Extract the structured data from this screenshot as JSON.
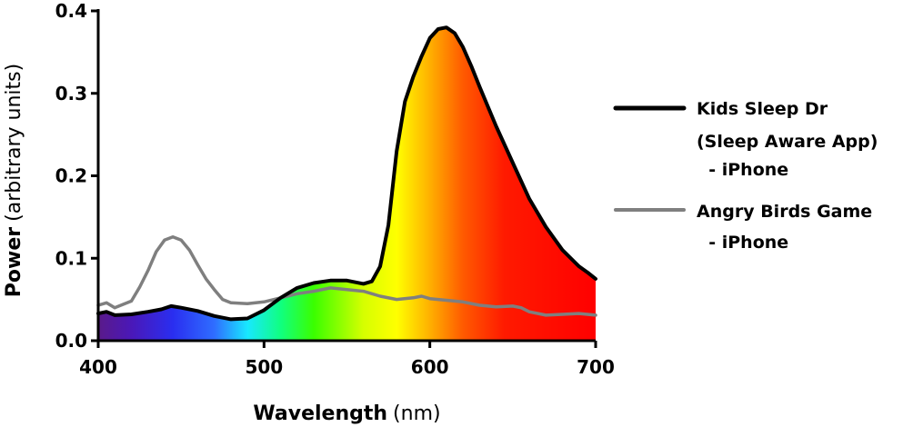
{
  "chart_data": {
    "type": "line",
    "xlabel": "Wavelength",
    "xlabel_unit": "(nm)",
    "ylabel": "Power",
    "ylabel_unit": "(arbitrary units)",
    "xlim": [
      400,
      700
    ],
    "ylim": [
      0,
      0.4
    ],
    "x_ticks": [
      "400",
      "500",
      "600",
      "700"
    ],
    "y_ticks": [
      "0.0",
      "0.1",
      "0.2",
      "0.3",
      "0.4"
    ],
    "grid": false,
    "legend_position": "right",
    "fill_under_series": "Kids Sleep Dr (Sleep Aware App) - iPhone",
    "fill_style": "visible-spectrum gradient",
    "series": [
      {
        "name_lines": [
          "Kids Sleep Dr",
          "(Sleep Aware App)",
          "  - iPhone"
        ],
        "name": "Kids Sleep Dr (Sleep Aware App) - iPhone",
        "color": "#000000",
        "points": [
          [
            400,
            0.033
          ],
          [
            405,
            0.035
          ],
          [
            410,
            0.031
          ],
          [
            420,
            0.032
          ],
          [
            430,
            0.035
          ],
          [
            438,
            0.038
          ],
          [
            444,
            0.042
          ],
          [
            450,
            0.04
          ],
          [
            460,
            0.036
          ],
          [
            470,
            0.03
          ],
          [
            480,
            0.026
          ],
          [
            490,
            0.027
          ],
          [
            500,
            0.037
          ],
          [
            510,
            0.052
          ],
          [
            520,
            0.064
          ],
          [
            530,
            0.07
          ],
          [
            540,
            0.073
          ],
          [
            550,
            0.073
          ],
          [
            560,
            0.069
          ],
          [
            565,
            0.072
          ],
          [
            570,
            0.09
          ],
          [
            575,
            0.14
          ],
          [
            580,
            0.23
          ],
          [
            585,
            0.29
          ],
          [
            590,
            0.32
          ],
          [
            595,
            0.345
          ],
          [
            600,
            0.367
          ],
          [
            605,
            0.378
          ],
          [
            610,
            0.38
          ],
          [
            615,
            0.373
          ],
          [
            620,
            0.356
          ],
          [
            625,
            0.333
          ],
          [
            630,
            0.308
          ],
          [
            640,
            0.26
          ],
          [
            650,
            0.216
          ],
          [
            660,
            0.172
          ],
          [
            670,
            0.138
          ],
          [
            680,
            0.11
          ],
          [
            690,
            0.09
          ],
          [
            695,
            0.083
          ],
          [
            700,
            0.075
          ]
        ]
      },
      {
        "name_lines": [
          "Angry Birds Game",
          "  - iPhone"
        ],
        "name": "Angry Birds Game - iPhone",
        "color": "#7f7f7f",
        "points": [
          [
            400,
            0.043
          ],
          [
            405,
            0.046
          ],
          [
            410,
            0.04
          ],
          [
            420,
            0.048
          ],
          [
            425,
            0.065
          ],
          [
            430,
            0.085
          ],
          [
            435,
            0.108
          ],
          [
            440,
            0.122
          ],
          [
            445,
            0.126
          ],
          [
            450,
            0.122
          ],
          [
            455,
            0.11
          ],
          [
            460,
            0.092
          ],
          [
            465,
            0.075
          ],
          [
            470,
            0.062
          ],
          [
            475,
            0.05
          ],
          [
            480,
            0.046
          ],
          [
            490,
            0.045
          ],
          [
            500,
            0.047
          ],
          [
            510,
            0.052
          ],
          [
            520,
            0.057
          ],
          [
            530,
            0.06
          ],
          [
            540,
            0.064
          ],
          [
            550,
            0.062
          ],
          [
            560,
            0.06
          ],
          [
            570,
            0.054
          ],
          [
            580,
            0.05
          ],
          [
            590,
            0.052
          ],
          [
            595,
            0.054
          ],
          [
            600,
            0.051
          ],
          [
            610,
            0.049
          ],
          [
            620,
            0.047
          ],
          [
            630,
            0.043
          ],
          [
            640,
            0.041
          ],
          [
            650,
            0.042
          ],
          [
            655,
            0.04
          ],
          [
            660,
            0.035
          ],
          [
            670,
            0.031
          ],
          [
            680,
            0.032
          ],
          [
            690,
            0.033
          ],
          [
            700,
            0.031
          ]
        ]
      }
    ],
    "spectrum_stops": [
      {
        "nm": 400,
        "color": "#5a1a8a"
      },
      {
        "nm": 420,
        "color": "#4a18b8"
      },
      {
        "nm": 445,
        "color": "#2a2ef0"
      },
      {
        "nm": 470,
        "color": "#2f6dff"
      },
      {
        "nm": 490,
        "color": "#18e8ff"
      },
      {
        "nm": 510,
        "color": "#10ff80"
      },
      {
        "nm": 530,
        "color": "#3aff00"
      },
      {
        "nm": 560,
        "color": "#d6ff00"
      },
      {
        "nm": 580,
        "color": "#ffff00"
      },
      {
        "nm": 600,
        "color": "#ffb000"
      },
      {
        "nm": 620,
        "color": "#ff5a00"
      },
      {
        "nm": 645,
        "color": "#ff1a00"
      },
      {
        "nm": 700,
        "color": "#ff0000"
      }
    ]
  }
}
